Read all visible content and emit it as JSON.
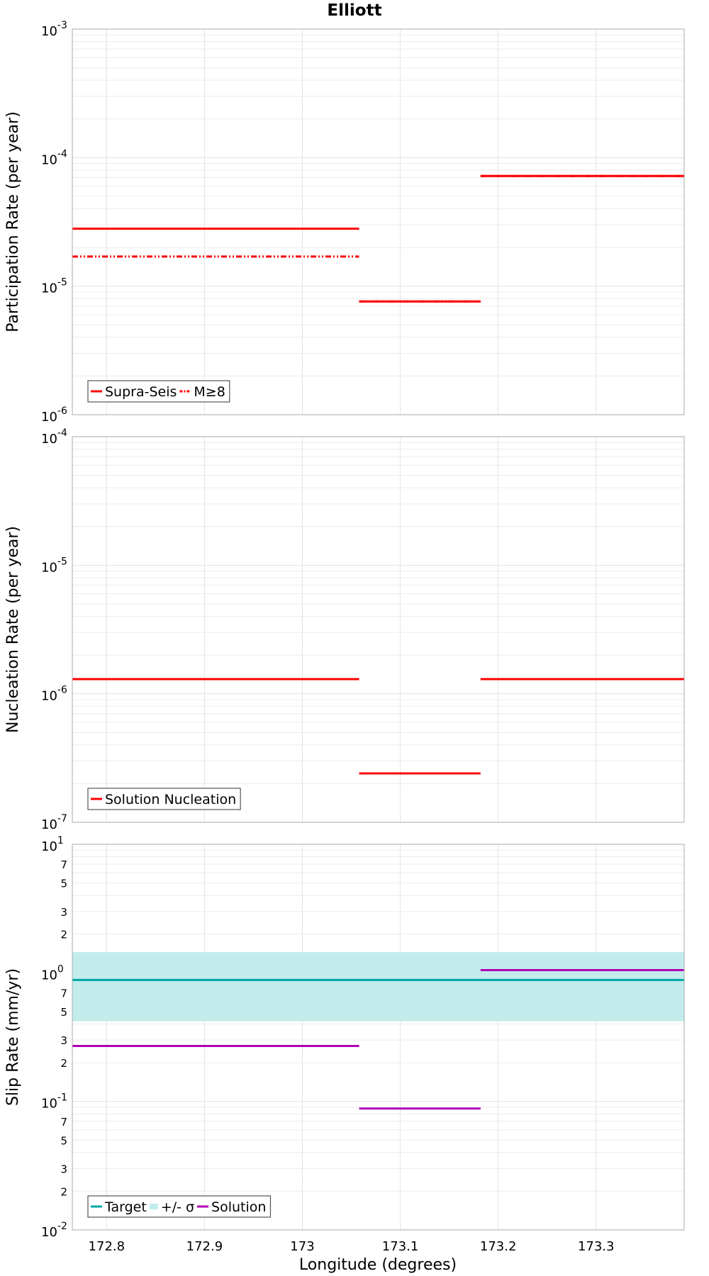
{
  "figure": {
    "title": "Elliott",
    "xlabel": "Longitude (degrees)",
    "xticks": [
      "172.8",
      "172.9",
      "173",
      "173.1",
      "173.2",
      "173.3"
    ]
  },
  "chart_data": [
    {
      "type": "line",
      "title": "Elliott",
      "ylabel": "Participation Rate (per year)",
      "yscale": "log",
      "ylim": [
        1e-06,
        0.001
      ],
      "xlim": [
        172.765,
        173.39
      ],
      "grid": true,
      "yticks": [
        {
          "base": "10",
          "exp": "-6"
        },
        {
          "base": "10",
          "exp": "-5"
        },
        {
          "base": "10",
          "exp": "-4"
        },
        {
          "base": "10",
          "exp": "-3"
        }
      ],
      "legend": {
        "placement": "bottom-left",
        "entries": [
          {
            "label": "Supra-Seis",
            "color": "#ff0000",
            "style": "solid"
          },
          {
            "label": "M≥8",
            "color": "#ff0000",
            "style": "dashdot"
          }
        ]
      },
      "series": [
        {
          "name": "Supra-Seis",
          "color": "#ff0000",
          "style": "solid",
          "segments": [
            {
              "x": [
                172.765,
                173.058
              ],
              "y": 2.8e-05
            },
            {
              "x": [
                173.058,
                173.182
              ],
              "y": 7.6e-06
            },
            {
              "x": [
                173.182,
                173.39
              ],
              "y": 7.2e-05
            }
          ]
        },
        {
          "name": "M≥8",
          "color": "#ff0000",
          "style": "dashdot",
          "segments": [
            {
              "x": [
                172.765,
                173.058
              ],
              "y": 1.7e-05
            },
            {
              "x": [
                173.058,
                173.182
              ],
              "y": 7.6e-06
            },
            {
              "x": [
                173.182,
                173.39
              ],
              "y": 7.2e-05
            }
          ]
        }
      ]
    },
    {
      "type": "line",
      "ylabel": "Nucleation Rate (per year)",
      "yscale": "log",
      "ylim": [
        1e-07,
        0.0001
      ],
      "xlim": [
        172.765,
        173.39
      ],
      "grid": true,
      "yticks": [
        {
          "base": "10",
          "exp": "-7"
        },
        {
          "base": "10",
          "exp": "-6"
        },
        {
          "base": "10",
          "exp": "-5"
        },
        {
          "base": "10",
          "exp": "-4"
        }
      ],
      "legend": {
        "placement": "bottom-left",
        "entries": [
          {
            "label": "Solution Nucleation",
            "color": "#ff0000",
            "style": "solid"
          }
        ]
      },
      "series": [
        {
          "name": "Solution Nucleation",
          "color": "#ff0000",
          "style": "solid",
          "segments": [
            {
              "x": [
                172.765,
                173.058
              ],
              "y": 1.3e-06
            },
            {
              "x": [
                173.058,
                173.182
              ],
              "y": 2.4e-07
            },
            {
              "x": [
                173.182,
                173.39
              ],
              "y": 1.3e-06
            }
          ]
        }
      ]
    },
    {
      "type": "line",
      "ylabel": "Slip Rate (mm/yr)",
      "xlabel": "Longitude (degrees)",
      "yscale": "log",
      "ylim": [
        0.01,
        10
      ],
      "xlim": [
        172.765,
        173.39
      ],
      "grid": true,
      "yticks": [
        {
          "base": "10",
          "exp": "-2"
        },
        {
          "base": "10",
          "exp": "-1"
        },
        {
          "base": "10",
          "exp": "0"
        },
        {
          "base": "10",
          "exp": "1"
        }
      ],
      "minor_tick_labels": [
        "2",
        "3",
        "5",
        "7"
      ],
      "band": {
        "name": "+/- σ",
        "color": "#c2ecec",
        "low": 0.42,
        "high": 1.45
      },
      "legend": {
        "placement": "bottom-left",
        "entries": [
          {
            "label": "Target",
            "color": "#00a6a6",
            "style": "solid"
          },
          {
            "label": "+/- σ",
            "color": "#c2ecec",
            "style": "band"
          },
          {
            "label": "Solution",
            "color": "#b000b5",
            "style": "solid"
          }
        ]
      },
      "series": [
        {
          "name": "Target",
          "color": "#00a6a6",
          "style": "solid",
          "segments": [
            {
              "x": [
                172.765,
                173.39
              ],
              "y": 0.88
            }
          ]
        },
        {
          "name": "Solution",
          "color": "#b000b5",
          "style": "solid",
          "segments": [
            {
              "x": [
                172.765,
                173.058
              ],
              "y": 0.27
            },
            {
              "x": [
                173.058,
                173.182
              ],
              "y": 0.088
            },
            {
              "x": [
                173.182,
                173.39
              ],
              "y": 1.05
            }
          ]
        }
      ]
    }
  ]
}
